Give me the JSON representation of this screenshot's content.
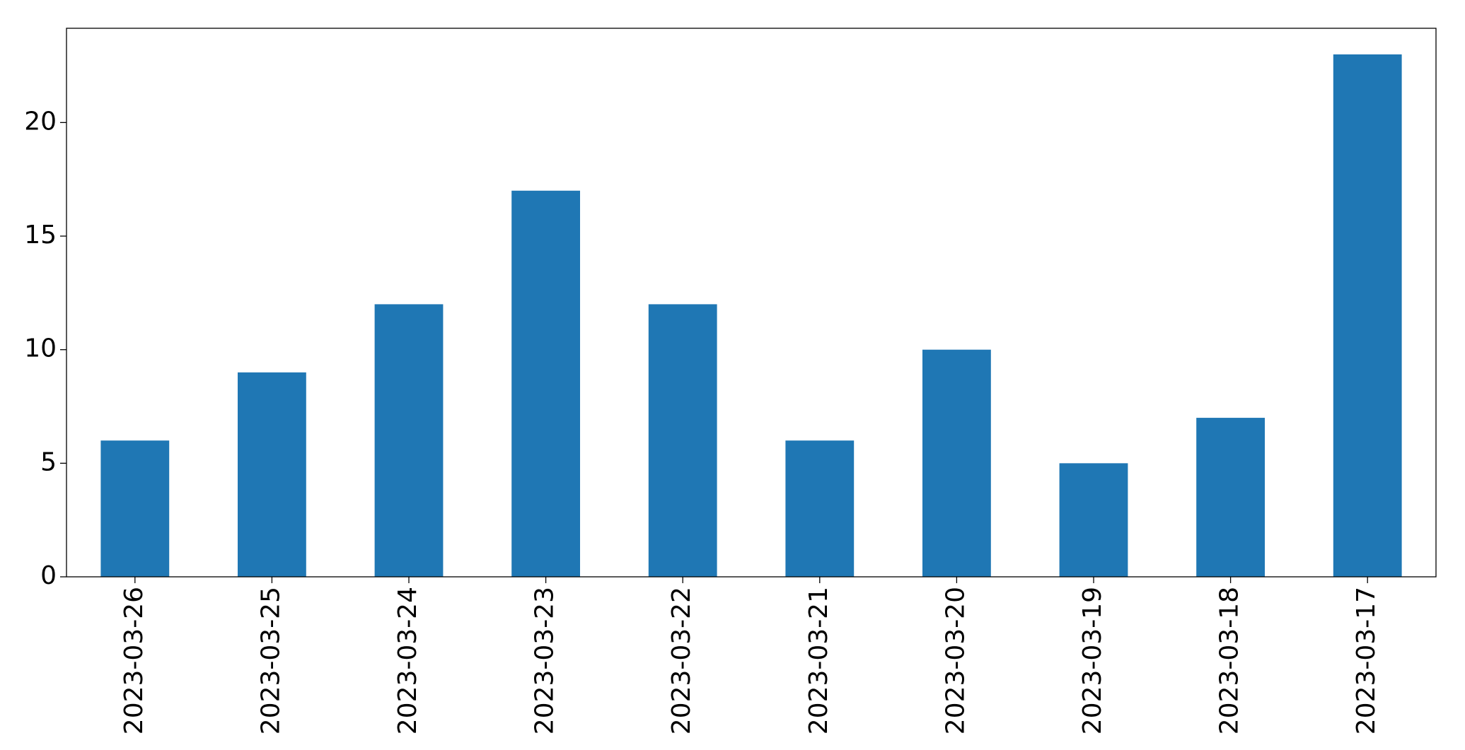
{
  "chart_data": {
    "type": "bar",
    "categories": [
      "2023-03-26",
      "2023-03-25",
      "2023-03-24",
      "2023-03-23",
      "2023-03-22",
      "2023-03-21",
      "2023-03-20",
      "2023-03-19",
      "2023-03-18",
      "2023-03-17"
    ],
    "values": [
      6,
      9,
      12,
      17,
      12,
      6,
      10,
      5,
      7,
      23
    ],
    "color": "#1f77b4",
    "ylim": [
      0,
      24.15
    ],
    "yticks": [
      0,
      5,
      10,
      15,
      20
    ],
    "grid": false
  }
}
